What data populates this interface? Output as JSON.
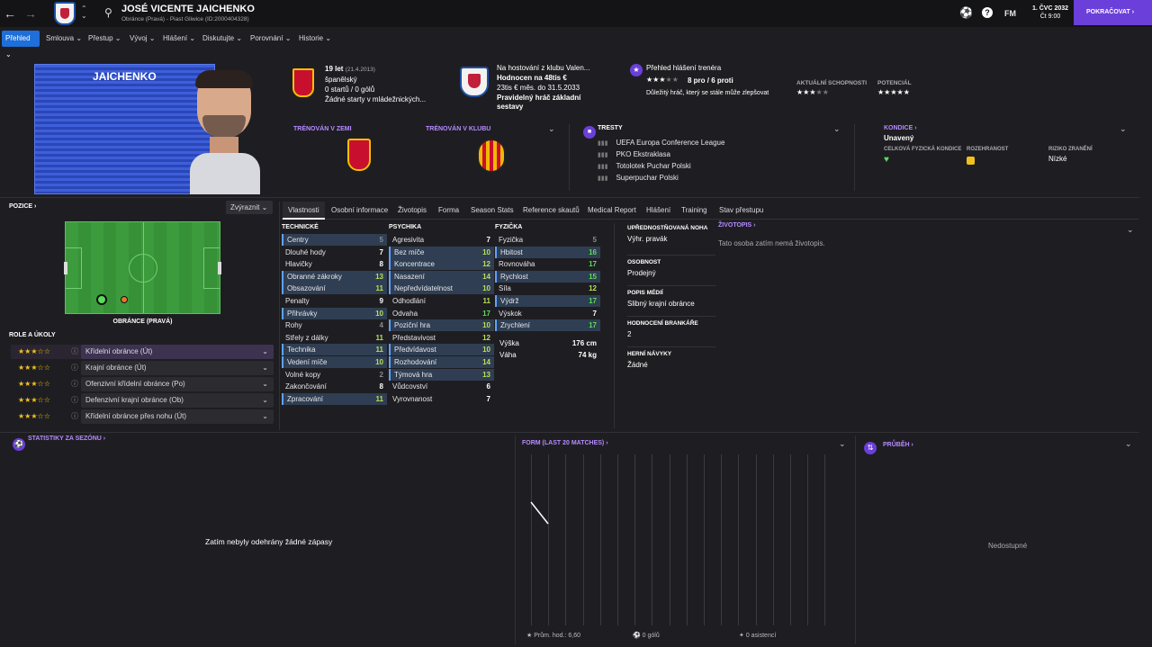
{
  "header": {
    "name": "JOSÉ VICENTE JAICHENKO",
    "sub": "Obránce (Pravá) - Piast Gliwice (ID:2000404328)",
    "date": "1. ČVC 2032",
    "time": "Čt 9:00",
    "continue": "POKRAČOVAT",
    "fm": "FM"
  },
  "nav": [
    "Přehled",
    "Smlouva",
    "Přestup",
    "Vývoj",
    "Hlášení",
    "Diskutujte",
    "Porovnání",
    "Historie"
  ],
  "card": {
    "surname": "JAICHENKO"
  },
  "info": {
    "age": "19 let",
    "dob": "(21.4.2013)",
    "nation": "španělský",
    "starts": "0 startů / 0 gólů",
    "u21": "Žádné starty v mládežnických..."
  },
  "loan": {
    "l1": "Na hostování z klubu Valen...",
    "l2": "Hodnocen na 48tis €",
    "l3": "23tis € měs. do 31.5.2033",
    "l4": "Pravidelný hráč základní",
    "l5": "sestavy"
  },
  "report": {
    "title": "Přehled hlášení trenéra",
    "pros": "8 pro / 6 proti",
    "desc": "Důležitý hráč, který se stále může zlepšovat",
    "current": "AKTUÁLNÍ SCHOPNOSTI",
    "potential": "POTENCIÁL"
  },
  "trained": {
    "nation": "TRÉNOVÁN V ZEMI",
    "club": "TRÉNOVÁN V KLUBU"
  },
  "trophies": {
    "title": "TRESTY",
    "items": [
      "UEFA Europa Conference League",
      "PKO Ekstraklasa",
      "Totolotek Puchar Polski",
      "Superpuchar Polski"
    ]
  },
  "condition": {
    "title": "KONDICE",
    "state": "Unavený",
    "c1": "CELKOVÁ FYZICKÁ KONDICE",
    "c2": "ROZEHRANOST",
    "c3": "RIZIKO ZRANĚNÍ",
    "c3v": "Nízké"
  },
  "position": {
    "title": "POZICE",
    "highlight": "Zvýraznit",
    "label": "OBRÁNCE (PRAVÁ)",
    "roles_title": "ROLE A ÚKOLY"
  },
  "roles": [
    {
      "stars": "★★★☆☆",
      "name": "Křídelní obránce (Út)"
    },
    {
      "stars": "★★★☆☆",
      "name": "Krajní obránce (Út)"
    },
    {
      "stars": "★★★☆☆",
      "name": "Ofenzivní křídelní obránce (Po)"
    },
    {
      "stars": "★★★☆☆",
      "name": "Defenzivní krajní obránce (Ob)"
    },
    {
      "stars": "★★★☆☆",
      "name": "Křídelní obránce přes nohu (Út)"
    }
  ],
  "tabs": [
    "Vlastnosti",
    "Osobní informace",
    "Životopis",
    "Forma",
    "Season Stats",
    "Reference skautů",
    "Medical Report",
    "Hlášení",
    "Training",
    "Stav přestupu"
  ],
  "technical": {
    "title": "TECHNICKÉ",
    "rows": [
      [
        "Centry",
        "5"
      ],
      [
        "Dlouhé hody",
        "7"
      ],
      [
        "Hlavičky",
        "8"
      ],
      [
        "Obranné zákroky",
        "13"
      ],
      [
        "Obsazování",
        "11"
      ],
      [
        "Penalty",
        "9"
      ],
      [
        "Přihrávky",
        "10"
      ],
      [
        "Rohy",
        "4"
      ],
      [
        "Střely z dálky",
        "11"
      ],
      [
        "Technika",
        "11"
      ],
      [
        "Vedení míče",
        "10"
      ],
      [
        "Volné kopy",
        "2"
      ],
      [
        "Zakončování",
        "8"
      ],
      [
        "Zpracování",
        "11"
      ]
    ]
  },
  "mental": {
    "title": "PSYCHIKA",
    "rows": [
      [
        "Agresivita",
        "7"
      ],
      [
        "Bez míče",
        "10"
      ],
      [
        "Koncentrace",
        "12"
      ],
      [
        "Nasazení",
        "14"
      ],
      [
        "Nepředvídatelnost",
        "10"
      ],
      [
        "Odhodlání",
        "11"
      ],
      [
        "Odvaha",
        "17"
      ],
      [
        "Poziční hra",
        "10"
      ],
      [
        "Představivost",
        "12"
      ],
      [
        "Předvídavost",
        "10"
      ],
      [
        "Rozhodování",
        "14"
      ],
      [
        "Týmová hra",
        "13"
      ],
      [
        "Vůdcovství",
        "6"
      ],
      [
        "Vyrovnanost",
        "7"
      ]
    ]
  },
  "physical": {
    "title": "FYZIČKA",
    "rows": [
      [
        "Fyzička",
        "5"
      ],
      [
        "Hbitost",
        "16"
      ],
      [
        "Rovnováha",
        "17"
      ],
      [
        "Rychlost",
        "15"
      ],
      [
        "Síla",
        "12"
      ],
      [
        "Výdrž",
        "17"
      ],
      [
        "Výskok",
        "7"
      ],
      [
        "Zrychlení",
        "17"
      ]
    ],
    "height_l": "Výška",
    "height": "176 cm",
    "weight_l": "Váha",
    "weight": "74 kg"
  },
  "side": [
    {
      "t": "UPŘEDNOSTŇOVANÁ NOHA",
      "v": "Výhr. pravák"
    },
    {
      "t": "OSOBNOST",
      "v": "Prodejný"
    },
    {
      "t": "POPIS MÉDIÍ",
      "v": "Slibný krajní obránce"
    },
    {
      "t": "HODNOCENÍ BRANKÁŘE",
      "v": "2"
    },
    {
      "t": "HERNÍ NÁVYKY",
      "v": "Žádné"
    }
  ],
  "bio": {
    "title": "ŽIVOTOPIS",
    "text": "Tato osoba zatím nemá životopis."
  },
  "season": {
    "title": "STATISTIKY ZA SEZÓNU",
    "empty": "Zatím nebyly odehrány žádné zápasy"
  },
  "form": {
    "title": "FORM (LAST 20 MATCHES)",
    "avg": "Prům. hod.: 6,60",
    "goals": "0 gólů",
    "assists": "0 asistencí"
  },
  "progress": {
    "title": "PRŮBĚH",
    "empty": "Nedostupné"
  },
  "colors": {
    "accent": "#b68aff",
    "green": "#5bdc5b",
    "blue": "#1e6fd9",
    "continue": "#6b3fd9"
  }
}
